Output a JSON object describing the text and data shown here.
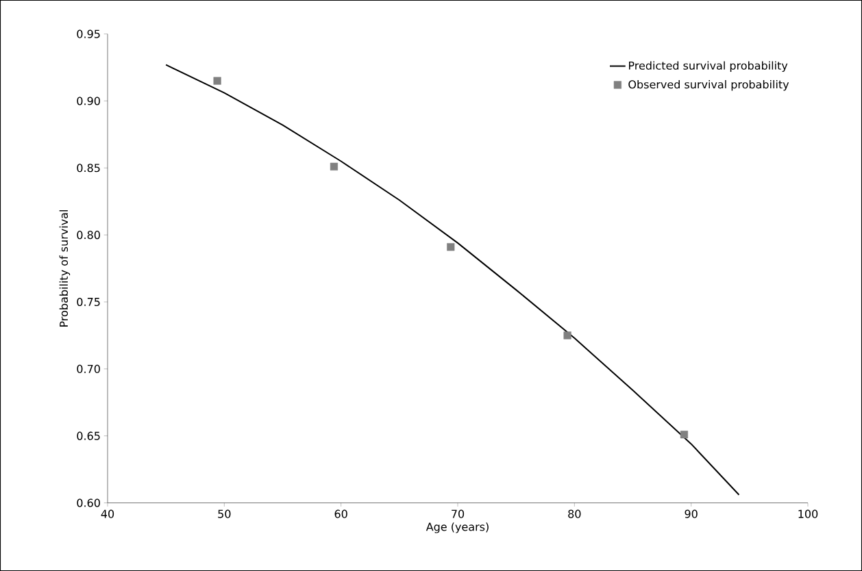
{
  "chart_data": {
    "type": "line",
    "xlabel": "Age (years)",
    "ylabel": "Probability of survival",
    "xlim": [
      40,
      100
    ],
    "xticks": [
      40,
      50,
      60,
      70,
      80,
      90,
      100
    ],
    "ylim": [
      0.6,
      0.95
    ],
    "yticks": [
      {
        "value": 0.6,
        "label": "0.60"
      },
      {
        "value": 0.65,
        "label": "0.65"
      },
      {
        "value": 0.7,
        "label": "0.70"
      },
      {
        "value": 0.75,
        "label": "0.75"
      },
      {
        "value": 0.8,
        "label": "0.80"
      },
      {
        "value": 0.85,
        "label": "0.85"
      },
      {
        "value": 0.9,
        "label": "0.90"
      },
      {
        "value": 0.95,
        "label": "0.95"
      }
    ],
    "grid": false,
    "legend": "top right",
    "series": [
      {
        "name": "Predicted survival probability",
        "color": "#000000",
        "marker": "none",
        "line_style": "solid",
        "x": [
          45,
          50,
          55,
          60,
          65,
          70,
          75,
          80,
          85,
          90,
          94.1
        ],
        "values": [
          0.927,
          0.906,
          0.882,
          0.855,
          0.826,
          0.794,
          0.759,
          0.723,
          0.684,
          0.644,
          0.606
        ]
      },
      {
        "name": "Observed survival probability",
        "type": "scatter",
        "color": "#808080",
        "marker": "square",
        "x": [
          49.4,
          59.4,
          69.4,
          79.4,
          89.4
        ],
        "values": [
          0.915,
          0.851,
          0.791,
          0.725,
          0.651
        ]
      }
    ]
  }
}
